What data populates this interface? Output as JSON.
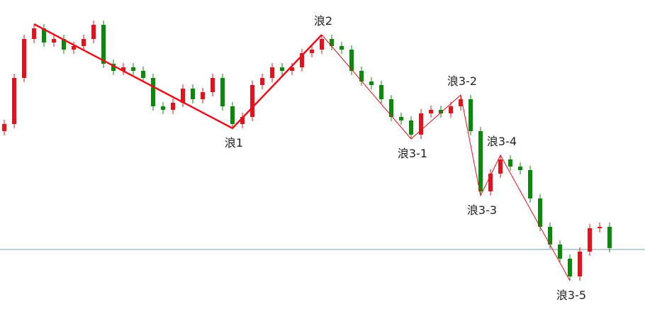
{
  "chart_data": {
    "type": "candlestick",
    "open": [
      251,
      261,
      326,
      381,
      396,
      376,
      381,
      366,
      371,
      381,
      401,
      346,
      336,
      341,
      336,
      326,
      286,
      281,
      291,
      311,
      296,
      306,
      326,
      286,
      261,
      271,
      316,
      326,
      341,
      336,
      341,
      361,
      366,
      381,
      371,
      366,
      336,
      321,
      316,
      296,
      271,
      266,
      246,
      276,
      281,
      276,
      286,
      296,
      251,
      166,
      191,
      211,
      201,
      196,
      156,
      116,
      91,
      71,
      46,
      81,
      114,
      116
    ],
    "high": [
      267,
      332,
      387,
      402,
      402,
      387,
      387,
      377,
      387,
      407,
      407,
      352,
      347,
      347,
      342,
      332,
      292,
      297,
      317,
      317,
      312,
      332,
      332,
      292,
      277,
      322,
      332,
      347,
      347,
      347,
      367,
      372,
      387,
      387,
      377,
      372,
      342,
      327,
      322,
      302,
      277,
      272,
      282,
      287,
      287,
      292,
      302,
      302,
      257,
      197,
      217,
      217,
      207,
      202,
      162,
      122,
      97,
      77,
      87,
      120,
      122,
      122
    ],
    "low": [
      245,
      255,
      320,
      375,
      370,
      370,
      360,
      360,
      365,
      375,
      340,
      330,
      330,
      330,
      320,
      280,
      275,
      275,
      285,
      290,
      290,
      300,
      280,
      255,
      255,
      265,
      310,
      320,
      330,
      330,
      335,
      355,
      360,
      365,
      360,
      330,
      315,
      310,
      290,
      265,
      260,
      240,
      240,
      270,
      270,
      270,
      280,
      245,
      160,
      160,
      185,
      195,
      190,
      150,
      110,
      85,
      65,
      40,
      40,
      75,
      108,
      80
    ],
    "close": [
      261,
      326,
      381,
      396,
      376,
      381,
      366,
      371,
      381,
      401,
      346,
      336,
      341,
      336,
      326,
      286,
      281,
      291,
      311,
      296,
      306,
      326,
      286,
      261,
      271,
      316,
      326,
      341,
      336,
      341,
      361,
      366,
      381,
      371,
      366,
      336,
      321,
      316,
      296,
      271,
      266,
      246,
      276,
      281,
      276,
      286,
      296,
      251,
      166,
      191,
      211,
      201,
      196,
      156,
      116,
      91,
      71,
      46,
      81,
      114,
      116,
      86
    ],
    "up_color": "#e8101a",
    "down_color": "#0a8a0a",
    "ylim": [
      0,
      436
    ],
    "hline": {
      "value": 84,
      "color": "#7f9aa6"
    },
    "waves": [
      {
        "color": "#e8101a",
        "width": 2.5,
        "index": [
          3,
          23,
          32
        ],
        "values": [
          402,
          255,
          387
        ],
        "labels": [
          null,
          "浪1",
          "浪2"
        ]
      },
      {
        "color": "#e8101a",
        "width": 1,
        "index": [
          32,
          41,
          46,
          48,
          50,
          57
        ],
        "values": [
          387,
          240,
          302,
          160,
          217,
          40
        ],
        "labels": [
          null,
          "浪3-1",
          "浪3-2",
          "浪3-3",
          "浪3-4",
          "浪3-5"
        ]
      }
    ]
  }
}
